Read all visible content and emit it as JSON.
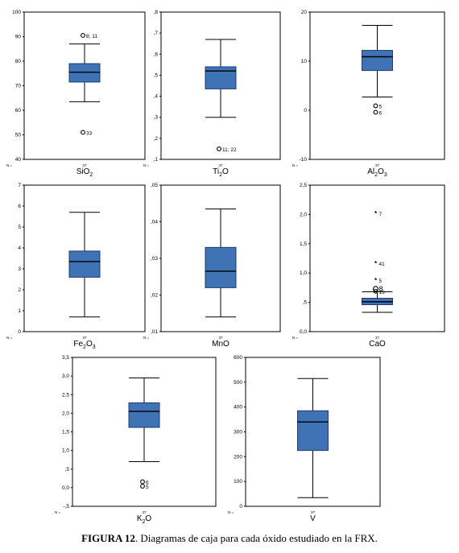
{
  "caption": {
    "number": "FIGURA 12",
    "text": ". Diagramas de caja para cada óxido estudiado en la FRX."
  },
  "colors": {
    "box": "#3f73b6",
    "box_edge": "#1c3f74",
    "frame": "#000000"
  },
  "chart_data": [
    {
      "type": "box",
      "xlabel": "SiO",
      "xlabel_sub": "2",
      "n_label": "N =",
      "n": "37",
      "ylim": [
        40,
        100
      ],
      "y_ticks": [
        {
          "v": 40,
          "t": "40"
        },
        {
          "v": 50,
          "t": "50"
        },
        {
          "v": 60,
          "t": "60"
        },
        {
          "v": 70,
          "t": "70"
        },
        {
          "v": 80,
          "t": "80"
        },
        {
          "v": 90,
          "t": "90"
        },
        {
          "v": 100,
          "t": "100"
        }
      ],
      "whisker_low": 63.5,
      "q1": 71.5,
      "median": 75.5,
      "q3": 79,
      "whisker_high": 87,
      "outliers": [
        {
          "value": 90.5,
          "symbol": "circle",
          "label": "8; 11"
        },
        {
          "value": 51,
          "symbol": "circle",
          "label": "33"
        }
      ]
    },
    {
      "type": "box",
      "xlabel": "Ti",
      "xlabel_sub": "2",
      "xlabel_tail": "O",
      "n_label": "N =",
      "n": "37",
      "ylim": [
        0.1,
        0.8
      ],
      "y_ticks": [
        {
          "v": 0.1,
          "t": ",1"
        },
        {
          "v": 0.2,
          "t": ",2"
        },
        {
          "v": 0.3,
          "t": ",3"
        },
        {
          "v": 0.4,
          "t": ",4"
        },
        {
          "v": 0.5,
          "t": ",5"
        },
        {
          "v": 0.6,
          "t": ",6"
        },
        {
          "v": 0.7,
          "t": ",7"
        },
        {
          "v": 0.8,
          "t": ",8"
        }
      ],
      "whisker_low": 0.3,
      "q1": 0.435,
      "median": 0.52,
      "q3": 0.54,
      "whisker_high": 0.67,
      "outliers": [
        {
          "value": 0.15,
          "symbol": "circle",
          "label": "11; 22"
        }
      ]
    },
    {
      "type": "box",
      "xlabel": "Al",
      "xlabel_sub": "2",
      "xlabel_tail": "O",
      "xlabel_sub2": "3",
      "n_label": "N =",
      "n": "37",
      "ylim": [
        -10,
        20
      ],
      "y_ticks": [
        {
          "v": -10,
          "t": "-10"
        },
        {
          "v": 0,
          "t": "0"
        },
        {
          "v": 10,
          "t": "10"
        },
        {
          "v": 20,
          "t": "20"
        }
      ],
      "whisker_low": 2.7,
      "q1": 8.1,
      "median": 10.9,
      "q3": 12.2,
      "whisker_high": 17.3,
      "outliers": [
        {
          "value": 0.9,
          "symbol": "circle",
          "label": "5"
        },
        {
          "value": -0.4,
          "symbol": "circle",
          "label": "6"
        }
      ]
    },
    {
      "type": "box",
      "xlabel": "Fe",
      "xlabel_sub": "2",
      "xlabel_tail": "O",
      "xlabel_sub2": "3",
      "n_label": "N =",
      "n": "37",
      "ylim": [
        0,
        7
      ],
      "y_ticks": [
        {
          "v": 0,
          "t": "0"
        },
        {
          "v": 1,
          "t": "1"
        },
        {
          "v": 2,
          "t": "2"
        },
        {
          "v": 3,
          "t": "3"
        },
        {
          "v": 4,
          "t": "4"
        },
        {
          "v": 5,
          "t": "5"
        },
        {
          "v": 6,
          "t": "6"
        },
        {
          "v": 7,
          "t": "7"
        }
      ],
      "whisker_low": 0.7,
      "q1": 2.6,
      "median": 3.35,
      "q3": 3.85,
      "whisker_high": 5.7,
      "outliers": []
    },
    {
      "type": "box",
      "xlabel": "MnO",
      "n_label": "N =",
      "n": "37",
      "ylim": [
        0.01,
        0.05
      ],
      "y_ticks": [
        {
          "v": 0.01,
          "t": ",01"
        },
        {
          "v": 0.02,
          "t": ",02"
        },
        {
          "v": 0.03,
          "t": ",03"
        },
        {
          "v": 0.04,
          "t": ",04"
        },
        {
          "v": 0.05,
          "t": ",05"
        }
      ],
      "whisker_low": 0.014,
      "q1": 0.022,
      "median": 0.0265,
      "q3": 0.033,
      "whisker_high": 0.0435,
      "outliers": []
    },
    {
      "type": "box",
      "xlabel": "CaO",
      "n_label": "N =",
      "n": "37",
      "ylim": [
        0,
        2.5
      ],
      "y_ticks": [
        {
          "v": 0,
          "t": "0,0"
        },
        {
          "v": 0.5,
          "t": ",5"
        },
        {
          "v": 1,
          "t": "1,0"
        },
        {
          "v": 1.5,
          "t": "1,5"
        },
        {
          "v": 2,
          "t": "2,0"
        },
        {
          "v": 2.5,
          "t": "2,5"
        }
      ],
      "whisker_low": 0.33,
      "q1": 0.46,
      "median": 0.51,
      "q3": 0.57,
      "whisker_high": 0.68,
      "outliers": [
        {
          "value": 2.02,
          "symbol": "star",
          "label": "7"
        },
        {
          "value": 1.17,
          "symbol": "star",
          "label": "41"
        },
        {
          "value": 0.88,
          "symbol": "star",
          "label": "5"
        },
        {
          "value": 0.73,
          "symbol": "circle",
          "label": "8",
          "big": true
        },
        {
          "value": 0.69,
          "symbol": "circle",
          "label": "13"
        }
      ]
    },
    {
      "type": "box",
      "xlabel": "K",
      "xlabel_sub": "2",
      "xlabel_tail": "O",
      "n_label": "N =",
      "n": "37",
      "ylim": [
        -0.5,
        3.5
      ],
      "y_ticks": [
        {
          "v": -0.5,
          "t": "-,5"
        },
        {
          "v": 0,
          "t": "0,0"
        },
        {
          "v": 0.5,
          "t": ",5"
        },
        {
          "v": 1,
          "t": "1,0"
        },
        {
          "v": 1.5,
          "t": "1,5"
        },
        {
          "v": 2,
          "t": "2,0"
        },
        {
          "v": 2.5,
          "t": "2,5"
        },
        {
          "v": 3,
          "t": "3,0"
        },
        {
          "v": 3.5,
          "t": "3,5"
        }
      ],
      "whisker_low": 0.7,
      "q1": 1.62,
      "median": 2.05,
      "q3": 2.28,
      "whisker_high": 2.95,
      "outliers": [
        {
          "value": 0.16,
          "symbol": "circle",
          "label": "6"
        },
        {
          "value": 0.04,
          "symbol": "circle",
          "label": "5"
        }
      ]
    },
    {
      "type": "box",
      "xlabel": "V",
      "n_label": "N =",
      "n": "37",
      "ylim": [
        0,
        600
      ],
      "y_ticks": [
        {
          "v": 0,
          "t": "0"
        },
        {
          "v": 100,
          "t": "100"
        },
        {
          "v": 200,
          "t": "200"
        },
        {
          "v": 300,
          "t": "300"
        },
        {
          "v": 400,
          "t": "400"
        },
        {
          "v": 500,
          "t": "500"
        },
        {
          "v": 600,
          "t": "600"
        }
      ],
      "whisker_low": 35,
      "q1": 225,
      "median": 340,
      "q3": 385,
      "whisker_high": 515,
      "outliers": []
    }
  ]
}
